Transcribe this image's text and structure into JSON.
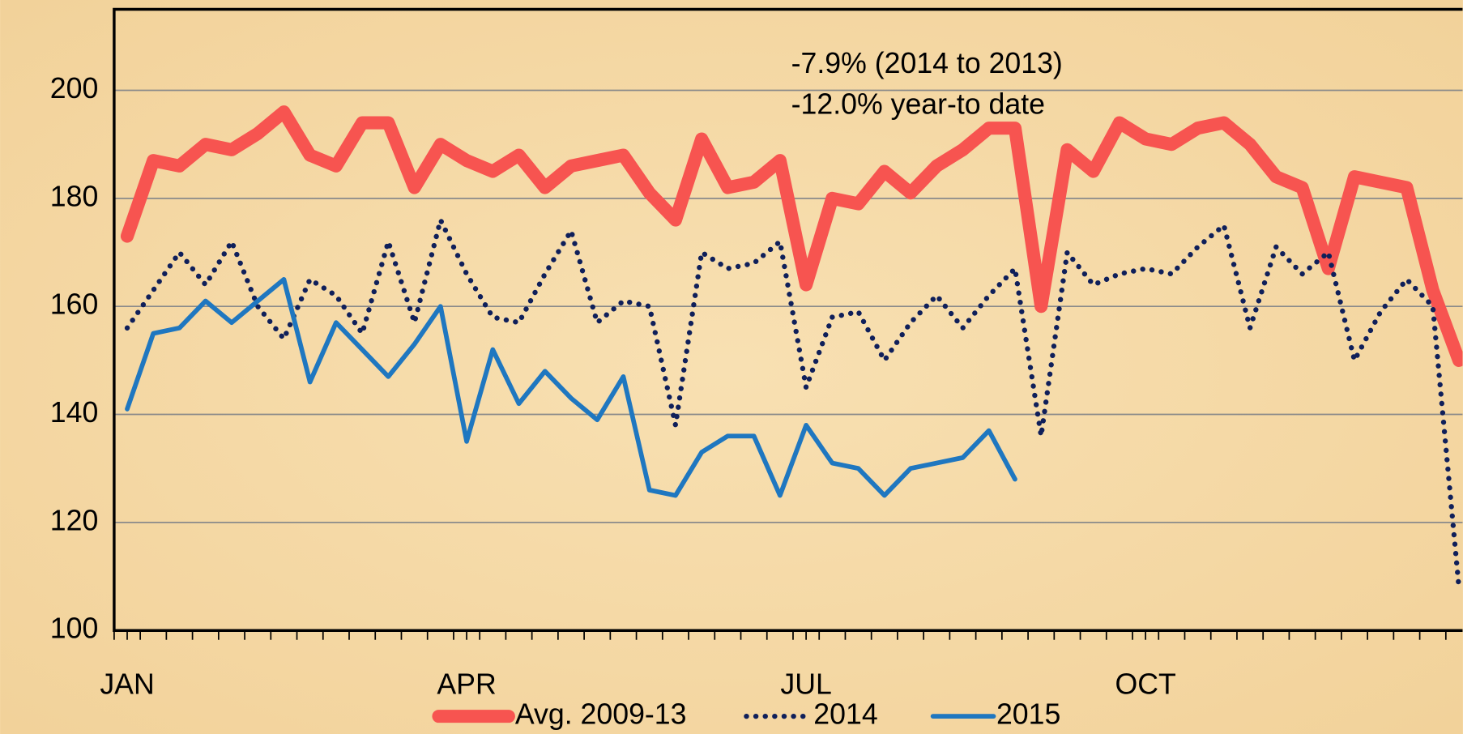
{
  "chart_data": {
    "type": "line",
    "annotations": [
      "-7.9% (2014 to 2013)",
      "-12.0% year-to date"
    ],
    "x": [
      1,
      2,
      3,
      4,
      5,
      6,
      7,
      8,
      9,
      10,
      11,
      12,
      13,
      14,
      15,
      16,
      17,
      18,
      19,
      20,
      21,
      22,
      23,
      24,
      25,
      26,
      27,
      28,
      29,
      30,
      31,
      32,
      33,
      34,
      35,
      36,
      37,
      38,
      39,
      40,
      41,
      42,
      43,
      44,
      45,
      46,
      47,
      48,
      49,
      50,
      51,
      52
    ],
    "xlim": [
      0.5,
      52.5
    ],
    "xticks": [
      {
        "value": 1,
        "label": "JAN"
      },
      {
        "value": 14,
        "label": "APR"
      },
      {
        "value": 27,
        "label": "JUL"
      },
      {
        "value": 40,
        "label": "OCT"
      }
    ],
    "ylim": [
      100,
      215
    ],
    "yticks": [
      100,
      120,
      140,
      160,
      180,
      200
    ],
    "grid": true,
    "legend": "bottom",
    "series": [
      {
        "name": "Avg. 2009-13",
        "color": "#f75450",
        "style": "solid",
        "values": [
          173,
          187,
          186,
          190,
          189,
          192,
          196,
          188,
          186,
          194,
          194,
          182,
          190,
          187,
          185,
          188,
          182,
          186,
          187,
          188,
          181,
          176,
          191,
          182,
          183,
          187,
          164,
          180,
          179,
          185,
          181,
          186,
          189,
          193,
          193,
          160,
          189,
          185,
          194,
          191,
          190,
          193,
          194,
          190,
          184,
          182,
          167,
          184,
          183,
          182,
          163,
          150
        ]
      },
      {
        "name": "2014",
        "color": "#0f1f5a",
        "style": "dotted",
        "values": [
          156,
          163,
          170,
          164,
          172,
          160,
          154,
          165,
          162,
          155,
          172,
          157,
          176,
          166,
          158,
          157,
          166,
          174,
          157,
          161,
          160,
          138,
          170,
          167,
          168,
          172,
          145,
          158,
          159,
          150,
          157,
          162,
          156,
          162,
          167,
          136,
          170,
          164,
          166,
          167,
          166,
          171,
          175,
          156,
          171,
          166,
          170,
          150,
          159,
          165,
          160,
          108
        ]
      },
      {
        "name": "2015",
        "color": "#1f77c0",
        "style": "solid",
        "values": [
          141,
          155,
          156,
          161,
          157,
          161,
          165,
          146,
          157,
          152,
          147,
          153,
          160,
          135,
          152,
          142,
          148,
          143,
          139,
          147,
          126,
          125,
          133,
          136,
          136,
          125,
          138,
          131,
          130,
          125,
          130,
          131,
          132,
          137,
          128,
          null,
          null,
          null,
          null,
          null,
          null,
          null,
          null,
          null,
          null,
          null,
          null,
          null,
          null,
          null,
          null,
          null
        ]
      }
    ]
  }
}
